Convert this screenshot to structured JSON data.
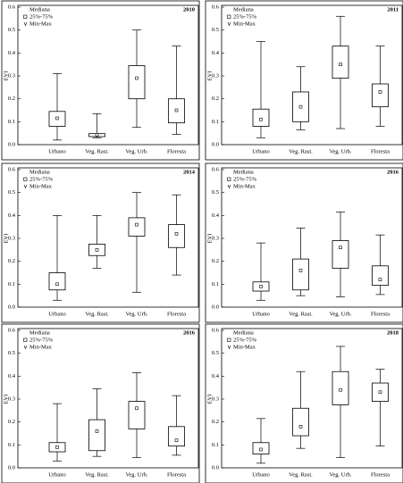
{
  "chart_data": [
    {
      "type": "box",
      "title": "2010",
      "ylabel": "EVI",
      "legend": [
        "Mediana",
        "25%-75%",
        "Min-Max"
      ],
      "categories": [
        "Urbano",
        "Veg. Rast.",
        "Veg. Urb.",
        "Floresta"
      ],
      "min": [
        0.02,
        0.03,
        0.075,
        0.045
      ],
      "q1": [
        0.08,
        0.035,
        0.2,
        0.095
      ],
      "median": [
        0.115,
        0.043,
        0.29,
        0.15
      ],
      "q3": [
        0.145,
        0.048,
        0.345,
        0.2
      ],
      "max": [
        0.31,
        0.135,
        0.5,
        0.43
      ],
      "ylim": [
        0,
        0.6
      ],
      "yticks": [
        {
          "value": 0,
          "label": "0.0"
        },
        0.1,
        0.2,
        0.3,
        0.4,
        0.5,
        0.6
      ]
    },
    {
      "type": "box",
      "title": "2011",
      "ylabel": "EVI",
      "legend": [
        "Mediana",
        "25%-75%",
        "Min-Max"
      ],
      "categories": [
        "Urbano",
        "Veg. Rast.",
        "Veg. Urb.",
        "Floresta"
      ],
      "min": [
        0.03,
        0.065,
        0.07,
        0.08
      ],
      "q1": [
        0.08,
        0.1,
        0.29,
        0.165
      ],
      "median": [
        0.11,
        0.165,
        0.35,
        0.23
      ],
      "q3": [
        0.155,
        0.23,
        0.43,
        0.265
      ],
      "max": [
        0.45,
        0.34,
        0.56,
        0.43
      ],
      "ylim": [
        0,
        0.6
      ],
      "yticks": [
        {
          "value": 0,
          "label": "0.0"
        },
        0.1,
        0.2,
        0.3,
        0.4,
        0.5,
        0.6
      ]
    },
    {
      "type": "box",
      "title": "2014",
      "ylabel": "EVI",
      "legend": [
        "Mediana",
        "25%-75%",
        "Min-Max"
      ],
      "categories": [
        "Urbano",
        "Veg. Rast.",
        "Veg. Urb.",
        "Floresta"
      ],
      "min": [
        0.03,
        0.17,
        0.065,
        0.14
      ],
      "q1": [
        0.075,
        0.225,
        0.31,
        0.26
      ],
      "median": [
        0.1,
        0.25,
        0.36,
        0.32
      ],
      "q3": [
        0.15,
        0.275,
        0.39,
        0.36
      ],
      "max": [
        0.4,
        0.4,
        0.5,
        0.49
      ],
      "ylim": [
        0,
        0.6
      ],
      "yticks": [
        {
          "value": 0,
          "label": "0.0"
        },
        0.1,
        0.2,
        0.3,
        0.4,
        0.5,
        0.6
      ]
    },
    {
      "type": "box",
      "title": "2016",
      "ylabel": "EVI",
      "legend": [
        "Mediana",
        "25%-75%",
        "Min-Max"
      ],
      "categories": [
        "Urbano",
        "Veg. Rast.",
        "Veg. Urb.",
        "Floresta"
      ],
      "min": [
        0.03,
        0.05,
        0.045,
        0.055
      ],
      "q1": [
        0.07,
        0.075,
        0.17,
        0.095
      ],
      "median": [
        0.09,
        0.16,
        0.26,
        0.12
      ],
      "q3": [
        0.11,
        0.21,
        0.29,
        0.18
      ],
      "max": [
        0.28,
        0.345,
        0.415,
        0.315
      ],
      "ylim": [
        0,
        0.6
      ],
      "yticks": [
        {
          "value": 0,
          "label": "0.0"
        },
        0.1,
        0.2,
        0.3,
        0.4,
        0.5,
        0.6
      ]
    },
    {
      "type": "box",
      "title": "2016",
      "ylabel": "EVI",
      "legend": [
        "Mediana",
        "25%-75%",
        "Min-Max"
      ],
      "categories": [
        "Urbano",
        "Veg. Rast.",
        "Veg. Urb.",
        "Floresta"
      ],
      "min": [
        0.03,
        0.05,
        0.045,
        0.055
      ],
      "q1": [
        0.07,
        0.075,
        0.17,
        0.095
      ],
      "median": [
        0.09,
        0.16,
        0.26,
        0.12
      ],
      "q3": [
        0.11,
        0.21,
        0.29,
        0.18
      ],
      "max": [
        0.28,
        0.345,
        0.415,
        0.315
      ],
      "ylim": [
        0,
        0.6
      ],
      "yticks": [
        {
          "value": 0,
          "label": "0.0"
        },
        0.1,
        0.2,
        0.3,
        0.4,
        0.5,
        0.6
      ]
    },
    {
      "type": "box",
      "title": "2018",
      "ylabel": "EVI",
      "legend": [
        "Mediana",
        "25%-75%",
        "Min-Max"
      ],
      "categories": [
        "Urbano",
        "Veg. Rast.",
        "Veg. Urb.",
        "Floresta"
      ],
      "min": [
        0.02,
        0.085,
        0.045,
        0.095
      ],
      "q1": [
        0.06,
        0.14,
        0.275,
        0.29
      ],
      "median": [
        0.08,
        0.18,
        0.34,
        0.33
      ],
      "q3": [
        0.11,
        0.26,
        0.42,
        0.37
      ],
      "max": [
        0.215,
        0.42,
        0.53,
        0.43
      ],
      "ylim": [
        0,
        0.6
      ],
      "yticks": [
        {
          "value": 0,
          "label": "0.0"
        },
        0.1,
        0.2,
        0.3,
        0.4,
        0.5,
        0.6
      ]
    }
  ]
}
